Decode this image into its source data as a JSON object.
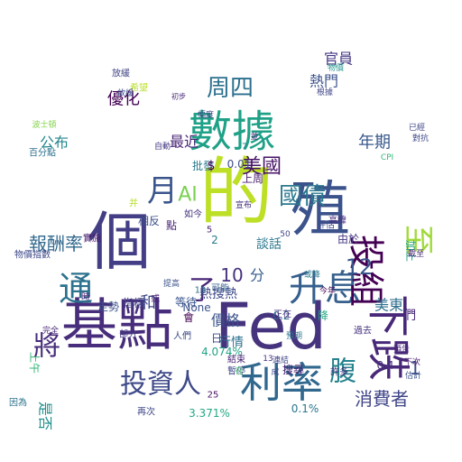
{
  "words": [
    {
      "text": "Fed",
      "color": "#46337e"
    },
    {
      "text": "的",
      "color": "#bddf26"
    },
    {
      "text": "基點",
      "color": "#472d7b"
    },
    {
      "text": "個",
      "color": "#433e85"
    },
    {
      "text": "殖",
      "color": "#3b528b"
    },
    {
      "text": "數據",
      "color": "#1fa187"
    },
    {
      "text": "利率",
      "color": "#31688e"
    },
    {
      "text": "投資人",
      "color": "#3e4a89"
    },
    {
      "text": "升息",
      "color": "#355f8d"
    },
    {
      "text": "下跌",
      "color": "#482878"
    },
    {
      "text": "通",
      "color": "#2c728e"
    },
    {
      "text": "將",
      "color": "#472c7a"
    },
    {
      "text": "投組",
      "color": "#440154"
    },
    {
      "text": "月",
      "color": "#3a548c"
    },
    {
      "text": "國債",
      "color": "#2a788e"
    },
    {
      "text": "美國",
      "color": "#471365"
    },
    {
      "text": "周四",
      "color": "#2d708e"
    },
    {
      "text": "報酬率",
      "color": "#31688e"
    },
    {
      "text": "至",
      "color": "#a0da39"
    },
    {
      "text": "AI",
      "color": "#7ad151"
    },
    {
      "text": "了",
      "color": "#482677"
    },
    {
      "text": "12",
      "color": "#39568c"
    },
    {
      "text": "10",
      "color": "#46327e"
    },
    {
      "text": "分",
      "color": "#365c8d"
    },
    {
      "text": "消費者",
      "color": "#404688"
    },
    {
      "text": "年期",
      "color": "#38598c"
    },
    {
      "text": "腹",
      "color": "#26828e"
    },
    {
      "text": "優化",
      "color": "#440154"
    },
    {
      "text": "官員",
      "color": "#443983"
    },
    {
      "text": "公布",
      "color": "#25858e"
    },
    {
      "text": "是否",
      "color": "#21918c"
    },
    {
      "text": "和",
      "color": "#3f4889"
    },
    {
      "text": "最近",
      "color": "#482475"
    },
    {
      "text": "熱門",
      "color": "#3b528b"
    },
    {
      "text": "1",
      "color": "#3e4c8a"
    },
    {
      "text": "美東",
      "color": "#2e6f8e"
    },
    {
      "text": "價格",
      "color": "#3b518b"
    },
    {
      "text": "相反",
      "color": "#3d4e8a"
    },
    {
      "text": "指標",
      "color": "#424086"
    },
    {
      "text": "走勢",
      "color": "#3c4f8a"
    },
    {
      "text": "等待",
      "color": "#39558c"
    },
    {
      "text": "談話",
      "color": "#2a788e"
    },
    {
      "text": "熱搜熱",
      "color": "#3e4989"
    },
    {
      "text": "行情",
      "color": "#2c718e"
    },
    {
      "text": "搜尋",
      "color": "#482173"
    },
    {
      "text": "由於",
      "color": "#453882"
    },
    {
      "text": "因為",
      "color": "#2c728e"
    },
    {
      "text": "再次",
      "color": "#3f4788"
    },
    {
      "text": "3.371%",
      "color": "#22a884"
    },
    {
      "text": "4.074%",
      "color": "#20a486"
    },
    {
      "text": "0.1%",
      "color": "#2a768e"
    },
    {
      "text": "0.4",
      "color": "#472f7d"
    },
    {
      "text": "0.2",
      "color": "#31678e"
    },
    {
      "text": "0.01",
      "color": "#3d4d8a"
    },
    {
      "text": "None",
      "color": "#3b528b"
    },
    {
      "text": "們",
      "color": "#482979"
    },
    {
      "text": "批發",
      "color": "#297a8e"
    },
    {
      "text": "上周",
      "color": "#48186a"
    },
    {
      "text": "評估",
      "color": "#3e4a89"
    },
    {
      "text": "高緯",
      "color": "#472f7d"
    },
    {
      "text": "降",
      "color": "#22a884"
    },
    {
      "text": "物價指數",
      "color": "#3e4989"
    },
    {
      "text": "百分點",
      "color": "#2d708e"
    },
    {
      "text": "放緩",
      "color": "#414487"
    },
    {
      "text": "初步",
      "color": "#482878"
    },
    {
      "text": "許多",
      "color": "#46337e"
    },
    {
      "text": "過去",
      "color": "#46327e"
    },
    {
      "text": "結束",
      "color": "#482173"
    },
    {
      "text": "暫停",
      "color": "#3f4889"
    },
    {
      "text": "會",
      "color": "#440154"
    },
    {
      "text": "25",
      "color": "#471063"
    },
    {
      "text": "19",
      "color": "#2e6e8e"
    },
    {
      "text": "并",
      "color": "#b5de2b"
    },
    {
      "text": "CPI",
      "color": "#35b779"
    },
    {
      "text": "已經",
      "color": "#404588"
    },
    {
      "text": "對抗",
      "color": "#3e4989"
    },
    {
      "text": "加上",
      "color": "#1fa187"
    },
    {
      "text": "截至",
      "color": "#482576"
    },
    {
      "text": "預告",
      "color": "#482878"
    },
    {
      "text": "下次",
      "color": "#481b6d"
    },
    {
      "text": "估計",
      "color": "#3b528b"
    },
    {
      "text": "正在",
      "color": "#46337e"
    },
    {
      "text": "實施",
      "color": "#481a6c"
    },
    {
      "text": "完全",
      "color": "#482878"
    },
    {
      "text": "部分",
      "color": "#433d84"
    },
    {
      "text": "可能",
      "color": "#34618d"
    },
    {
      "text": "人們",
      "color": "#3e4a89"
    },
    {
      "text": "或",
      "color": "#482475"
    },
    {
      "text": "自動",
      "color": "#443a83"
    },
    {
      "text": "物價",
      "color": "#1f958b"
    },
    {
      "text": "根據",
      "color": "#3f4788"
    },
    {
      "text": "連結",
      "color": "#404688"
    },
    {
      "text": "日",
      "color": "#3e4989"
    },
    {
      "text": "點",
      "color": "#482677"
    },
    {
      "text": "$",
      "color": "#440154"
    },
    {
      "text": "如今",
      "color": "#46337e"
    },
    {
      "text": "宣布",
      "color": "#46307e"
    },
    {
      "text": "上午",
      "color": "#34b679"
    },
    {
      "text": "波士頓",
      "color": "#84d44b"
    },
    {
      "text": "希望",
      "color": "#b8de29"
    },
    {
      "text": "放緩",
      "color": "#3d4e8a"
    },
    {
      "text": "幅度",
      "color": "#404588"
    },
    {
      "text": "並",
      "color": "#482576"
    },
    {
      "text": "在",
      "color": "#42be71"
    },
    {
      "text": "成",
      "color": "#3f4889"
    },
    {
      "text": "預期",
      "color": "#2b748e"
    },
    {
      "text": "13",
      "color": "#46307e"
    },
    {
      "text": "7",
      "color": "#26828e"
    },
    {
      "text": "50",
      "color": "#414487"
    },
    {
      "text": "5",
      "color": "#482071"
    },
    {
      "text": "2",
      "color": "#2a788e"
    },
    {
      "text": "時",
      "color": "#482374"
    },
    {
      "text": "或降",
      "color": "#2a788e"
    },
    {
      "text": "今年",
      "color": "#440154"
    },
    {
      "text": "提高",
      "color": "#3b528b"
    }
  ]
}
